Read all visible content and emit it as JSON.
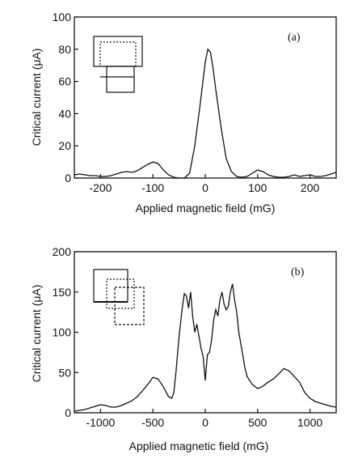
{
  "chart_data": [
    {
      "type": "line",
      "panel_label": "(a)",
      "xlabel": "Applied magnetic field (mG)",
      "ylabel": "Critical current (μA)",
      "xlim": [
        -250,
        250
      ],
      "ylim": [
        0,
        100
      ],
      "xticks": [
        -200,
        -100,
        0,
        100,
        200
      ],
      "yticks": [
        0,
        20,
        40,
        60,
        80,
        100
      ],
      "grid": false,
      "x": [
        -250,
        -240,
        -230,
        -220,
        -210,
        -200,
        -190,
        -180,
        -170,
        -160,
        -150,
        -140,
        -130,
        -120,
        -110,
        -100,
        -90,
        -80,
        -70,
        -60,
        -50,
        -40,
        -30,
        -20,
        -10,
        0,
        5,
        10,
        15,
        20,
        30,
        40,
        50,
        60,
        70,
        80,
        90,
        100,
        110,
        120,
        130,
        140,
        150,
        160,
        170,
        180,
        190,
        200,
        210,
        220,
        230,
        240,
        250
      ],
      "values": [
        2,
        2.5,
        2,
        1.5,
        1.5,
        1,
        1,
        1.5,
        2.5,
        3.5,
        4,
        3.5,
        4.5,
        6.5,
        8.5,
        10,
        9,
        5,
        2,
        0.5,
        0,
        0,
        3,
        20,
        45,
        72,
        80,
        78,
        68,
        55,
        32,
        12,
        4,
        1,
        0.5,
        1,
        3,
        5,
        4,
        2,
        1,
        0.5,
        0.5,
        1,
        2,
        1,
        1.5,
        2,
        1,
        1,
        1.5,
        2.5,
        3.5
      ]
    },
    {
      "type": "line",
      "panel_label": "(b)",
      "xlabel": "Applied magnetic field (mG)",
      "ylabel": "Critical current (μA)",
      "xlim": [
        -1250,
        1250
      ],
      "ylim": [
        0,
        200
      ],
      "xticks": [
        -1000,
        -500,
        0,
        500,
        1000
      ],
      "yticks": [
        0,
        50,
        100,
        150,
        200
      ],
      "grid": false,
      "x": [
        -1250,
        -1200,
        -1150,
        -1100,
        -1050,
        -1000,
        -950,
        -900,
        -850,
        -800,
        -750,
        -700,
        -650,
        -600,
        -550,
        -500,
        -450,
        -400,
        -350,
        -320,
        -300,
        -280,
        -250,
        -220,
        -200,
        -180,
        -160,
        -140,
        -120,
        -100,
        -80,
        -60,
        -40,
        -20,
        0,
        20,
        40,
        60,
        80,
        100,
        120,
        140,
        160,
        180,
        200,
        220,
        240,
        260,
        280,
        300,
        320,
        340,
        360,
        380,
        400,
        450,
        500,
        550,
        600,
        650,
        700,
        750,
        800,
        850,
        900,
        950,
        1000,
        1050,
        1100,
        1150,
        1200,
        1250
      ],
      "values": [
        2,
        3,
        4,
        6,
        8,
        10,
        9,
        7,
        7,
        9,
        12,
        15,
        20,
        27,
        35,
        44,
        42,
        32,
        20,
        18,
        25,
        50,
        95,
        130,
        148,
        145,
        130,
        150,
        120,
        100,
        110,
        95,
        80,
        70,
        40,
        72,
        75,
        90,
        115,
        128,
        120,
        140,
        150,
        135,
        128,
        132,
        150,
        160,
        140,
        125,
        100,
        85,
        70,
        55,
        45,
        35,
        30,
        33,
        38,
        42,
        48,
        55,
        52,
        45,
        38,
        25,
        18,
        14,
        12,
        10,
        8,
        7
      ]
    }
  ]
}
